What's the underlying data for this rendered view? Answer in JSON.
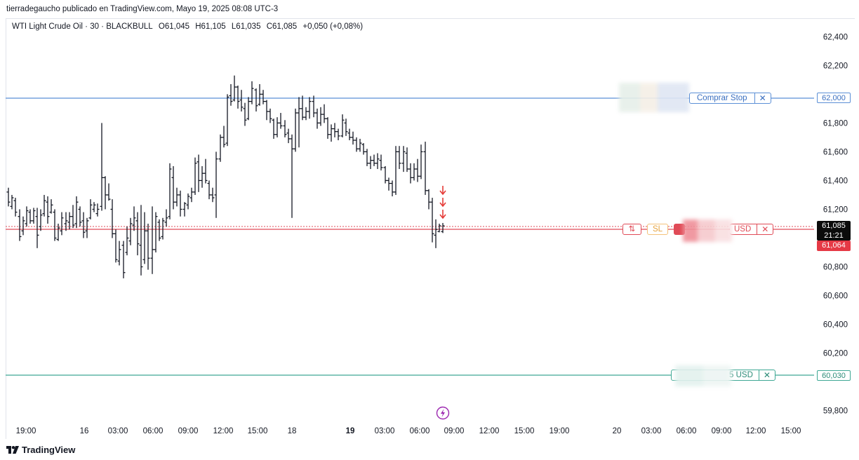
{
  "header": {
    "text": "tierradegaucho publicado en TradingView.com, Mayo 19, 2025 08:08 UTC-3"
  },
  "legend": {
    "symbol": "WTI Light Crude Oil · 30 · BLACKBULL",
    "open": "O61,045",
    "high": "H61,105",
    "low": "L61,035",
    "close": "C61,085",
    "change": "+0,050 (+0,08%)"
  },
  "price_axis": {
    "ticks": [
      "62,400",
      "62,200",
      "61,800",
      "61,600",
      "61,400",
      "61,200",
      "60,800",
      "60,600",
      "60,400",
      "60,200",
      "59,800"
    ],
    "tick_values": [
      62400,
      62200,
      61800,
      61600,
      61400,
      61200,
      60800,
      60600,
      60400,
      60200,
      59800
    ]
  },
  "time_axis": {
    "labels": [
      "19:00",
      "16",
      "03:00",
      "06:00",
      "09:00",
      "12:00",
      "15:00",
      "18",
      "19",
      "03:00",
      "06:00",
      "09:00",
      "12:00",
      "15:00",
      "19:00",
      "20",
      "03:00",
      "06:00",
      "09:00",
      "12:00",
      "15:00"
    ],
    "bold": [
      false,
      false,
      false,
      false,
      false,
      false,
      false,
      false,
      true,
      false,
      false,
      false,
      false,
      false,
      false,
      false,
      false,
      false,
      false,
      false,
      false
    ]
  },
  "price_tags": {
    "buy_stop": "62,000",
    "current_price": "61,085",
    "countdown": "21:21",
    "sl_price": "61,064",
    "tp_price": "60,030"
  },
  "orders": {
    "buy_stop_label": "Comprar Stop",
    "sl_label": "SL",
    "sl_swap_icon": "⇅",
    "sl_pnl": "USD",
    "tp_pnl": "5 USD",
    "close_icon": "✕"
  },
  "colors": {
    "buy_stop_line": "#5b8fd6",
    "sl_line": "#e04b57",
    "tp_line": "#3ea894",
    "candle": "#131722",
    "arrow": "#e53935",
    "event_icon": "#9c27b0"
  },
  "footer": {
    "logo_text": "TradingView"
  },
  "chart_data": {
    "type": "ohlc",
    "ylim": [
      59730,
      62460
    ],
    "price_lines": [
      {
        "name": "Comprar Stop",
        "value": 62000
      },
      {
        "name": "SL",
        "value": 61064
      },
      {
        "name": "TP",
        "value": 60030
      }
    ],
    "current_price": 61085,
    "bars": [
      {
        "x": 12,
        "h": 61350,
        "l": 61220,
        "o": 61320,
        "c": 61250
      },
      {
        "x": 17,
        "h": 61300,
        "l": 61200,
        "o": 61220,
        "c": 61280
      },
      {
        "x": 22,
        "h": 61280,
        "l": 61150,
        "o": 61260,
        "c": 61180
      },
      {
        "x": 28,
        "h": 61200,
        "l": 60980,
        "o": 61150,
        "c": 61010
      },
      {
        "x": 33,
        "h": 61150,
        "l": 61020,
        "o": 61050,
        "c": 61120
      },
      {
        "x": 38,
        "h": 61220,
        "l": 61080,
        "o": 61100,
        "c": 61190
      },
      {
        "x": 43,
        "h": 61200,
        "l": 61100,
        "o": 61180,
        "c": 61120
      },
      {
        "x": 48,
        "h": 61210,
        "l": 61100,
        "o": 61120,
        "c": 61190
      },
      {
        "x": 53,
        "h": 61210,
        "l": 60930,
        "o": 61150,
        "c": 61020
      },
      {
        "x": 58,
        "h": 61200,
        "l": 61050,
        "o": 61080,
        "c": 61160
      },
      {
        "x": 63,
        "h": 61300,
        "l": 61150,
        "o": 61170,
        "c": 61260
      },
      {
        "x": 68,
        "h": 61290,
        "l": 61100,
        "o": 61250,
        "c": 61150
      },
      {
        "x": 73,
        "h": 61270,
        "l": 61170,
        "o": 61180,
        "c": 61230
      },
      {
        "x": 78,
        "h": 61200,
        "l": 60980,
        "o": 61180,
        "c": 61000
      },
      {
        "x": 83,
        "h": 61100,
        "l": 60980,
        "o": 60990,
        "c": 61070
      },
      {
        "x": 88,
        "h": 61180,
        "l": 61020,
        "o": 61050,
        "c": 61140
      },
      {
        "x": 94,
        "h": 61180,
        "l": 61050,
        "o": 61100,
        "c": 61120
      },
      {
        "x": 99,
        "h": 61180,
        "l": 61060,
        "o": 61110,
        "c": 61150
      },
      {
        "x": 104,
        "h": 61230,
        "l": 61070,
        "o": 61150,
        "c": 61090
      },
      {
        "x": 109,
        "h": 61290,
        "l": 61070,
        "o": 61100,
        "c": 61250
      },
      {
        "x": 114,
        "h": 61220,
        "l": 61080,
        "o": 61200,
        "c": 61110
      },
      {
        "x": 119,
        "h": 61180,
        "l": 61000,
        "o": 61120,
        "c": 61040
      },
      {
        "x": 124,
        "h": 61140,
        "l": 61000,
        "o": 61050,
        "c": 61120
      },
      {
        "x": 129,
        "h": 61270,
        "l": 61130,
        "o": 61140,
        "c": 61230
      },
      {
        "x": 134,
        "h": 61250,
        "l": 61180,
        "o": 61200,
        "c": 61230
      },
      {
        "x": 139,
        "h": 61240,
        "l": 61150,
        "o": 61170,
        "c": 61200
      },
      {
        "x": 145,
        "h": 61800,
        "l": 61190,
        "o": 61220,
        "c": 61420
      },
      {
        "x": 150,
        "h": 61430,
        "l": 61200,
        "o": 61420,
        "c": 61300
      },
      {
        "x": 155,
        "h": 61380,
        "l": 61260,
        "o": 61300,
        "c": 61270
      },
      {
        "x": 160,
        "h": 61270,
        "l": 61000,
        "o": 61200,
        "c": 61030
      },
      {
        "x": 165,
        "h": 61060,
        "l": 60830,
        "o": 61030,
        "c": 60850
      },
      {
        "x": 170,
        "h": 60980,
        "l": 60810,
        "o": 60840,
        "c": 60920
      },
      {
        "x": 176,
        "h": 60980,
        "l": 60720,
        "o": 60950,
        "c": 60760
      },
      {
        "x": 181,
        "h": 61080,
        "l": 60880,
        "o": 60900,
        "c": 61000
      },
      {
        "x": 186,
        "h": 61140,
        "l": 60950,
        "o": 60980,
        "c": 61100
      },
      {
        "x": 191,
        "h": 61220,
        "l": 61050,
        "o": 61090,
        "c": 61140
      },
      {
        "x": 196,
        "h": 61180,
        "l": 60880,
        "o": 61120,
        "c": 60960
      },
      {
        "x": 201,
        "h": 61230,
        "l": 60740,
        "o": 60950,
        "c": 60800
      },
      {
        "x": 206,
        "h": 61180,
        "l": 60820,
        "o": 60850,
        "c": 61050
      },
      {
        "x": 211,
        "h": 61100,
        "l": 60780,
        "o": 61050,
        "c": 60860
      },
      {
        "x": 217,
        "h": 61220,
        "l": 60750,
        "o": 60860,
        "c": 60920
      },
      {
        "x": 222,
        "h": 61180,
        "l": 60900,
        "o": 60920,
        "c": 61150
      },
      {
        "x": 227,
        "h": 61130,
        "l": 60980,
        "o": 61110,
        "c": 61000
      },
      {
        "x": 232,
        "h": 61140,
        "l": 60990,
        "o": 61010,
        "c": 61120
      },
      {
        "x": 237,
        "h": 61200,
        "l": 61080,
        "o": 61110,
        "c": 61140
      },
      {
        "x": 242,
        "h": 61520,
        "l": 61130,
        "o": 61150,
        "c": 61480
      },
      {
        "x": 247,
        "h": 61500,
        "l": 61200,
        "o": 61420,
        "c": 61250
      },
      {
        "x": 252,
        "h": 61350,
        "l": 61220,
        "o": 61250,
        "c": 61300
      },
      {
        "x": 257,
        "h": 61330,
        "l": 61150,
        "o": 61300,
        "c": 61200
      },
      {
        "x": 263,
        "h": 61250,
        "l": 61150,
        "o": 61200,
        "c": 61240
      },
      {
        "x": 268,
        "h": 61310,
        "l": 61200,
        "o": 61230,
        "c": 61290
      },
      {
        "x": 273,
        "h": 61350,
        "l": 61250,
        "o": 61280,
        "c": 61320
      },
      {
        "x": 278,
        "h": 61560,
        "l": 61300,
        "o": 61320,
        "c": 61520
      },
      {
        "x": 283,
        "h": 61580,
        "l": 61320,
        "o": 61530,
        "c": 61400
      },
      {
        "x": 288,
        "h": 61500,
        "l": 61350,
        "o": 61400,
        "c": 61450
      },
      {
        "x": 293,
        "h": 61550,
        "l": 61380,
        "o": 61450,
        "c": 61400
      },
      {
        "x": 298,
        "h": 61400,
        "l": 61270,
        "o": 61380,
        "c": 61300
      },
      {
        "x": 303,
        "h": 61350,
        "l": 61250,
        "o": 61300,
        "c": 61280
      },
      {
        "x": 308,
        "h": 61600,
        "l": 61140,
        "o": 61300,
        "c": 61550
      },
      {
        "x": 314,
        "h": 61720,
        "l": 61530,
        "o": 61550,
        "c": 61700
      },
      {
        "x": 319,
        "h": 61780,
        "l": 61630,
        "o": 61700,
        "c": 61650
      },
      {
        "x": 324,
        "h": 62000,
        "l": 61640,
        "o": 61660,
        "c": 61980
      },
      {
        "x": 329,
        "h": 62070,
        "l": 61920,
        "o": 61990,
        "c": 61950
      },
      {
        "x": 334,
        "h": 62130,
        "l": 61950,
        "o": 61960,
        "c": 62050
      },
      {
        "x": 339,
        "h": 62060,
        "l": 61900,
        "o": 62050,
        "c": 61950
      },
      {
        "x": 344,
        "h": 62030,
        "l": 61880,
        "o": 61960,
        "c": 61910
      },
      {
        "x": 349,
        "h": 61940,
        "l": 61780,
        "o": 61900,
        "c": 61820
      },
      {
        "x": 354,
        "h": 61980,
        "l": 61820,
        "o": 61830,
        "c": 61950
      },
      {
        "x": 359,
        "h": 62090,
        "l": 61930,
        "o": 61950,
        "c": 62040
      },
      {
        "x": 365,
        "h": 62040,
        "l": 61880,
        "o": 62030,
        "c": 61920
      },
      {
        "x": 370,
        "h": 62070,
        "l": 61920,
        "o": 61930,
        "c": 62000
      },
      {
        "x": 375,
        "h": 62030,
        "l": 61930,
        "o": 62000,
        "c": 61950
      },
      {
        "x": 380,
        "h": 61960,
        "l": 61820,
        "o": 61950,
        "c": 61880
      },
      {
        "x": 385,
        "h": 61900,
        "l": 61800,
        "o": 61880,
        "c": 61830
      },
      {
        "x": 390,
        "h": 61830,
        "l": 61690,
        "o": 61820,
        "c": 61720
      },
      {
        "x": 395,
        "h": 61840,
        "l": 61700,
        "o": 61720,
        "c": 61800
      },
      {
        "x": 400,
        "h": 61870,
        "l": 61760,
        "o": 61800,
        "c": 61780
      },
      {
        "x": 406,
        "h": 61820,
        "l": 61700,
        "o": 61780,
        "c": 61720
      },
      {
        "x": 411,
        "h": 61760,
        "l": 61660,
        "o": 61730,
        "c": 61690
      },
      {
        "x": 416,
        "h": 61720,
        "l": 61140,
        "o": 61690,
        "c": 61620
      },
      {
        "x": 421,
        "h": 61900,
        "l": 61600,
        "o": 61620,
        "c": 61870
      },
      {
        "x": 426,
        "h": 61980,
        "l": 61630,
        "o": 61870,
        "c": 61900
      },
      {
        "x": 431,
        "h": 61990,
        "l": 61820,
        "o": 61900,
        "c": 61840
      },
      {
        "x": 436,
        "h": 61910,
        "l": 61820,
        "o": 61840,
        "c": 61880
      },
      {
        "x": 441,
        "h": 61980,
        "l": 61830,
        "o": 61880,
        "c": 61950
      },
      {
        "x": 447,
        "h": 61990,
        "l": 61840,
        "o": 61950,
        "c": 61870
      },
      {
        "x": 452,
        "h": 61900,
        "l": 61760,
        "o": 61870,
        "c": 61800
      },
      {
        "x": 457,
        "h": 61910,
        "l": 61780,
        "o": 61800,
        "c": 61860
      },
      {
        "x": 462,
        "h": 61930,
        "l": 61800,
        "o": 61860,
        "c": 61830
      },
      {
        "x": 467,
        "h": 61840,
        "l": 61690,
        "o": 61830,
        "c": 61720
      },
      {
        "x": 472,
        "h": 61790,
        "l": 61670,
        "o": 61720,
        "c": 61760
      },
      {
        "x": 477,
        "h": 61800,
        "l": 61700,
        "o": 61760,
        "c": 61740
      },
      {
        "x": 482,
        "h": 61760,
        "l": 61680,
        "o": 61740,
        "c": 61710
      },
      {
        "x": 488,
        "h": 61860,
        "l": 61700,
        "o": 61710,
        "c": 61820
      },
      {
        "x": 493,
        "h": 61830,
        "l": 61710,
        "o": 61800,
        "c": 61740
      },
      {
        "x": 498,
        "h": 61760,
        "l": 61680,
        "o": 61730,
        "c": 61700
      },
      {
        "x": 503,
        "h": 61740,
        "l": 61650,
        "o": 61700,
        "c": 61680
      },
      {
        "x": 508,
        "h": 61700,
        "l": 61600,
        "o": 61680,
        "c": 61620
      },
      {
        "x": 513,
        "h": 61690,
        "l": 61600,
        "o": 61620,
        "c": 61660
      },
      {
        "x": 518,
        "h": 61660,
        "l": 61580,
        "o": 61650,
        "c": 61600
      },
      {
        "x": 523,
        "h": 61620,
        "l": 61500,
        "o": 61600,
        "c": 61520
      },
      {
        "x": 528,
        "h": 61570,
        "l": 61480,
        "o": 61520,
        "c": 61540
      },
      {
        "x": 533,
        "h": 61580,
        "l": 61500,
        "o": 61540,
        "c": 61520
      },
      {
        "x": 538,
        "h": 61590,
        "l": 61480,
        "o": 61520,
        "c": 61550
      },
      {
        "x": 543,
        "h": 61580,
        "l": 61470,
        "o": 61540,
        "c": 61490
      },
      {
        "x": 549,
        "h": 61500,
        "l": 61380,
        "o": 61490,
        "c": 61400
      },
      {
        "x": 554,
        "h": 61420,
        "l": 61330,
        "o": 61400,
        "c": 61380
      },
      {
        "x": 559,
        "h": 61400,
        "l": 61290,
        "o": 61380,
        "c": 61320
      },
      {
        "x": 564,
        "h": 61640,
        "l": 61300,
        "o": 61320,
        "c": 61600
      },
      {
        "x": 569,
        "h": 61640,
        "l": 61480,
        "o": 61600,
        "c": 61520
      },
      {
        "x": 575,
        "h": 61640,
        "l": 61460,
        "o": 61520,
        "c": 61600
      },
      {
        "x": 580,
        "h": 61630,
        "l": 61460,
        "o": 61590,
        "c": 61480
      },
      {
        "x": 585,
        "h": 61520,
        "l": 61380,
        "o": 61480,
        "c": 61420
      },
      {
        "x": 590,
        "h": 61520,
        "l": 61400,
        "o": 61420,
        "c": 61480
      },
      {
        "x": 595,
        "h": 61550,
        "l": 61390,
        "o": 61480,
        "c": 61430
      },
      {
        "x": 600,
        "h": 61650,
        "l": 61410,
        "o": 61430,
        "c": 61600
      },
      {
        "x": 606,
        "h": 61670,
        "l": 61300,
        "o": 61600,
        "c": 61330
      },
      {
        "x": 611,
        "h": 61340,
        "l": 61200,
        "o": 61330,
        "c": 61250
      },
      {
        "x": 616,
        "h": 61280,
        "l": 60970,
        "o": 61250,
        "c": 61030
      },
      {
        "x": 621,
        "h": 61130,
        "l": 60930,
        "o": 61020,
        "c": 61060
      },
      {
        "x": 626,
        "h": 61100,
        "l": 61040,
        "o": 61045,
        "c": 61085
      },
      {
        "x": 631,
        "h": 61105,
        "l": 61035,
        "o": 61045,
        "c": 61085
      }
    ]
  }
}
